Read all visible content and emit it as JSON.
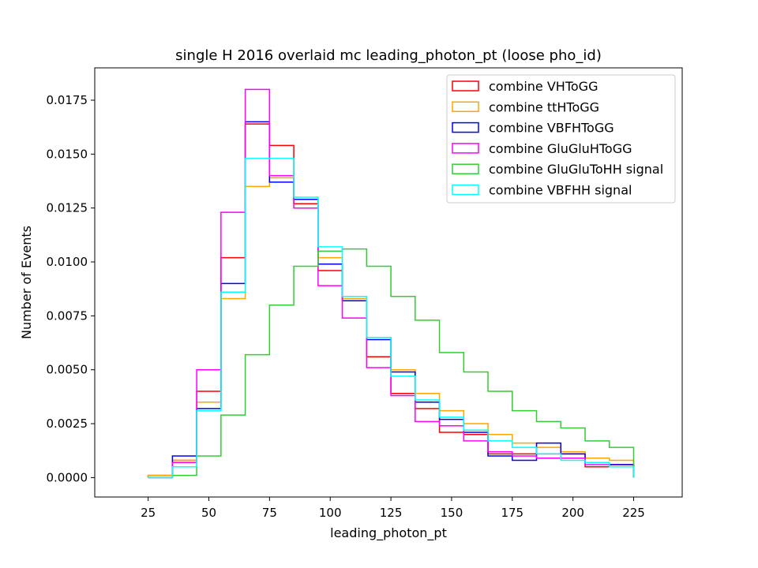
{
  "chart_data": {
    "type": "step",
    "title": "single H 2016 overlaid mc leading_photon_pt (loose pho_id)",
    "xlabel": "leading_photon_pt",
    "ylabel": "Number of Events",
    "xlim": [
      3,
      245
    ],
    "ylim": [
      -0.0009,
      0.019
    ],
    "xticks": [
      25,
      50,
      75,
      100,
      125,
      150,
      175,
      200,
      225
    ],
    "yticks": [
      0.0,
      0.0025,
      0.005,
      0.0075,
      0.01,
      0.0125,
      0.015,
      0.0175
    ],
    "ytick_labels": [
      "0.0000",
      "0.0025",
      "0.0050",
      "0.0075",
      "0.0100",
      "0.0125",
      "0.0150",
      "0.0175"
    ],
    "grid": false,
    "legend_position": "top-right",
    "bin_edges": [
      25,
      35,
      45,
      55,
      65,
      75,
      85,
      95,
      105,
      115,
      125,
      135,
      145,
      155,
      165,
      175,
      185,
      195,
      205,
      215,
      225
    ],
    "series": [
      {
        "name": "combine VHToGG",
        "color": "#ff0000",
        "values": [
          0.0001,
          0.0008,
          0.004,
          0.0102,
          0.0164,
          0.0154,
          0.0127,
          0.0096,
          0.0082,
          0.0056,
          0.0039,
          0.0032,
          0.0021,
          0.002,
          0.0011,
          0.0011,
          0.0011,
          0.0011,
          0.0005,
          0.0006
        ]
      },
      {
        "name": "combine ttHToGG",
        "color": "#ffa500",
        "values": [
          0.0001,
          0.0008,
          0.0035,
          0.0083,
          0.0135,
          0.0139,
          0.0129,
          0.0102,
          0.0083,
          0.0065,
          0.005,
          0.0039,
          0.0031,
          0.0025,
          0.002,
          0.0016,
          0.0014,
          0.0012,
          0.0009,
          0.0008
        ]
      },
      {
        "name": "combine VBFHToGG",
        "color": "#0000ff",
        "values": [
          0.0,
          0.001,
          0.0032,
          0.009,
          0.0165,
          0.0137,
          0.0129,
          0.0099,
          0.0082,
          0.0064,
          0.0049,
          0.0035,
          0.0027,
          0.0021,
          0.001,
          0.0008,
          0.0016,
          0.0011,
          0.0007,
          0.0006
        ]
      },
      {
        "name": "combine GluGluHToGG",
        "color": "#ff00ff",
        "values": [
          0.0,
          0.0007,
          0.005,
          0.0123,
          0.018,
          0.014,
          0.0125,
          0.0089,
          0.0074,
          0.0051,
          0.0038,
          0.0026,
          0.0024,
          0.0017,
          0.0012,
          0.001,
          0.0009,
          0.0009,
          0.0006,
          0.0005
        ]
      },
      {
        "name": "combine GluGluToHH signal",
        "color": "#33cc33",
        "values": [
          0.0,
          0.0001,
          0.001,
          0.0029,
          0.0057,
          0.008,
          0.0098,
          0.0105,
          0.0106,
          0.0098,
          0.0084,
          0.0073,
          0.0058,
          0.0049,
          0.004,
          0.0031,
          0.0026,
          0.0023,
          0.0017,
          0.0014
        ]
      },
      {
        "name": "combine VBFHH signal",
        "color": "#00ffff",
        "values": [
          0.0,
          0.0005,
          0.0031,
          0.0086,
          0.0148,
          0.0148,
          0.013,
          0.0107,
          0.0084,
          0.0065,
          0.0047,
          0.0036,
          0.0028,
          0.0022,
          0.0017,
          0.0014,
          0.0011,
          0.0008,
          0.0007,
          0.0005
        ]
      }
    ]
  }
}
